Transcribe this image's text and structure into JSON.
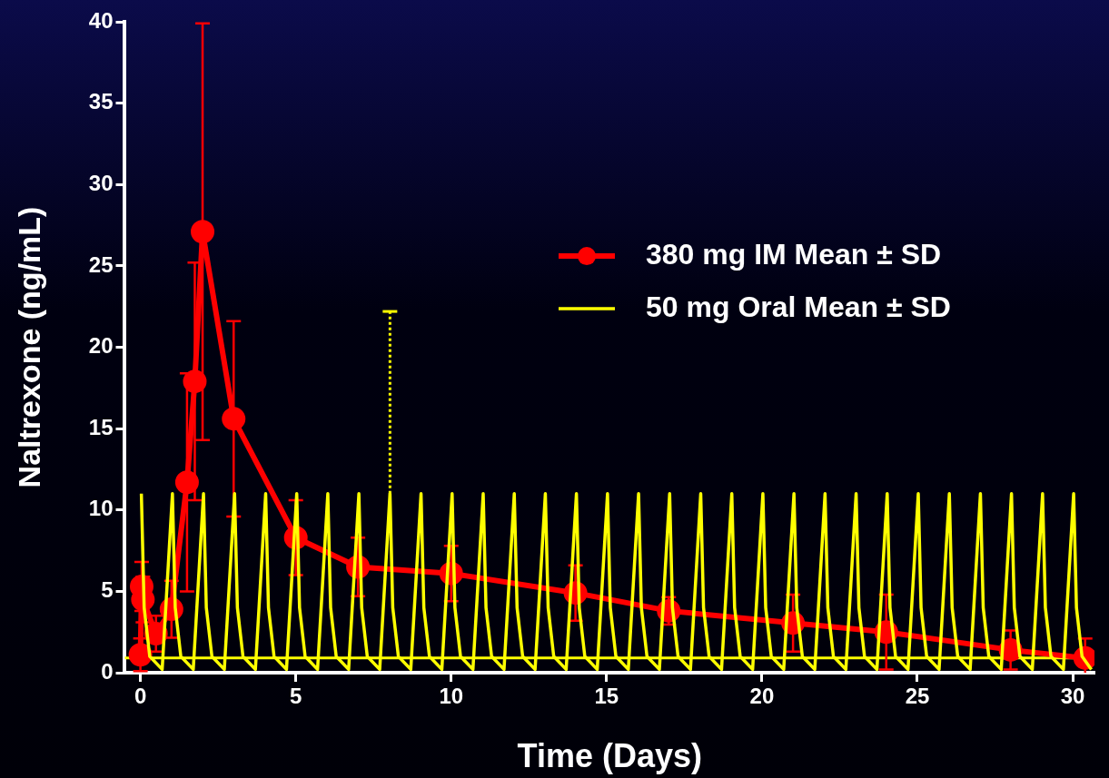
{
  "chart_data": {
    "type": "line",
    "xlabel": "Time (Days)",
    "ylabel": "Naltrexone (ng/mL)",
    "xlim": [
      -0.5,
      30.7
    ],
    "xticks": [
      0,
      5,
      10,
      15,
      20,
      25,
      30
    ],
    "ylim": [
      0,
      40
    ],
    "yticks": [
      0,
      5,
      10,
      15,
      20,
      25,
      30,
      35,
      40
    ],
    "grid": false,
    "legend": "right",
    "ref_lines": [
      {
        "axis": "y",
        "value": 0.9,
        "color": "#ffff00"
      }
    ],
    "series": [
      {
        "name": "380 mg IM Mean ± SD",
        "color": "#ff0000",
        "marker": "circle",
        "x": [
          0,
          0.04,
          0.08,
          0.5,
          1,
          1.5,
          1.75,
          2,
          3,
          5,
          7,
          10,
          14,
          17,
          21,
          24,
          28,
          30.4
        ],
        "values": [
          1.1,
          5.3,
          4.5,
          2.4,
          3.9,
          11.7,
          17.9,
          27.1,
          15.6,
          8.3,
          6.5,
          6.1,
          4.9,
          3.8,
          3.05,
          2.5,
          1.4,
          0.9
        ],
        "errors": [
          1,
          1.5,
          1.4,
          1.1,
          1.75,
          6.7,
          7.3,
          12.8,
          6,
          2.3,
          1.8,
          1.7,
          1.7,
          0.85,
          1.75,
          2.3,
          1.2,
          [
            0,
            2.1
          ]
        ]
      },
      {
        "name": "50 mg Oral Mean ± SD",
        "color": "#ffff00",
        "marker": "none",
        "line_style": "solid",
        "x": [
          0.03,
          0.12,
          0.3,
          0.7,
          1.03,
          1.12,
          1.3,
          1.7,
          2.03,
          2.12,
          2.3,
          2.7,
          3.03,
          3.12,
          3.3,
          3.7,
          4.03,
          4.12,
          4.3,
          4.7,
          5.03,
          5.12,
          5.3,
          5.7,
          6.03,
          6.12,
          6.3,
          6.7,
          7.03,
          7.12,
          7.3,
          7.7,
          8.03,
          8.12,
          8.3,
          8.7,
          9.03,
          9.12,
          9.3,
          9.7,
          10.03,
          10.12,
          10.3,
          10.7,
          11.03,
          11.12,
          11.3,
          11.7,
          12.03,
          12.12,
          12.3,
          12.7,
          13.03,
          13.12,
          13.3,
          13.7,
          14.03,
          14.12,
          14.3,
          14.7,
          15.03,
          15.12,
          15.3,
          15.7,
          16.03,
          16.12,
          16.3,
          16.7,
          17.03,
          17.12,
          17.3,
          17.7,
          18.03,
          18.12,
          18.3,
          18.7,
          19.03,
          19.12,
          19.3,
          19.7,
          20.03,
          20.12,
          20.3,
          20.7,
          21.03,
          21.12,
          21.3,
          21.7,
          22.03,
          22.12,
          22.3,
          22.7,
          23.03,
          23.12,
          23.3,
          23.7,
          24.03,
          24.12,
          24.3,
          24.7,
          25.03,
          25.12,
          25.3,
          25.7,
          26.03,
          26.12,
          26.3,
          26.7,
          27.03,
          27.12,
          27.3,
          27.7,
          28.03,
          28.12,
          28.3,
          28.7,
          29.03,
          29.12,
          29.3,
          29.7,
          30.03,
          30.12,
          30.3,
          30.6
        ],
        "values": [
          11,
          4,
          1,
          0.2,
          11,
          4,
          1,
          0.2,
          11,
          4,
          1,
          0.2,
          11,
          4,
          1,
          0.2,
          11,
          4,
          1,
          0.2,
          11,
          4,
          1,
          0.2,
          11,
          4,
          1,
          0.2,
          11,
          4,
          1,
          0.2,
          11,
          4,
          1,
          0.2,
          11,
          4,
          1,
          0.2,
          11,
          4,
          1,
          0.2,
          11,
          4,
          1,
          0.2,
          11,
          4,
          1,
          0.2,
          11,
          4,
          1,
          0.2,
          11,
          4,
          1,
          0.2,
          11,
          4,
          1,
          0.2,
          11,
          4,
          1,
          0.2,
          11,
          4,
          1,
          0.2,
          11,
          4,
          1,
          0.2,
          11,
          4,
          1,
          0.2,
          11,
          4,
          1,
          0.2,
          11,
          4,
          1,
          0.2,
          11,
          4,
          1,
          0.2,
          11,
          4,
          1,
          0.2,
          11,
          4,
          1,
          0.2,
          11,
          4,
          1,
          0.2,
          11,
          4,
          1,
          0.2,
          11,
          4,
          1,
          0.2,
          11,
          4,
          1,
          0.2,
          11,
          4,
          1,
          0.2,
          11,
          4,
          1,
          0.2
        ],
        "errors": [
          null,
          null,
          null,
          null,
          null,
          null,
          null,
          null,
          null,
          null,
          null,
          null,
          null,
          null,
          null,
          null,
          null,
          null,
          null,
          null,
          null,
          null,
          null,
          null,
          null,
          null,
          null,
          null,
          null,
          null,
          null,
          null,
          [
            11,
            22.2
          ],
          null,
          null,
          null,
          null,
          null,
          null,
          null,
          null,
          null,
          null,
          null,
          null,
          null,
          null,
          null,
          null,
          null,
          null,
          null,
          null,
          null,
          null,
          null,
          null,
          null,
          null,
          null,
          null,
          null,
          null,
          null,
          null,
          null,
          null,
          null,
          null,
          null,
          null,
          null,
          null,
          null,
          null,
          null,
          null,
          null,
          null,
          null,
          null,
          null,
          null,
          null,
          null,
          null,
          null,
          null,
          null,
          null,
          null,
          null,
          null,
          null,
          null,
          null,
          null,
          null,
          null,
          null,
          null,
          null,
          null,
          null,
          null,
          null,
          null,
          null,
          null,
          null,
          null,
          null,
          null,
          null,
          null,
          null,
          null,
          null,
          null,
          null,
          null,
          null,
          null,
          null
        ]
      }
    ]
  }
}
